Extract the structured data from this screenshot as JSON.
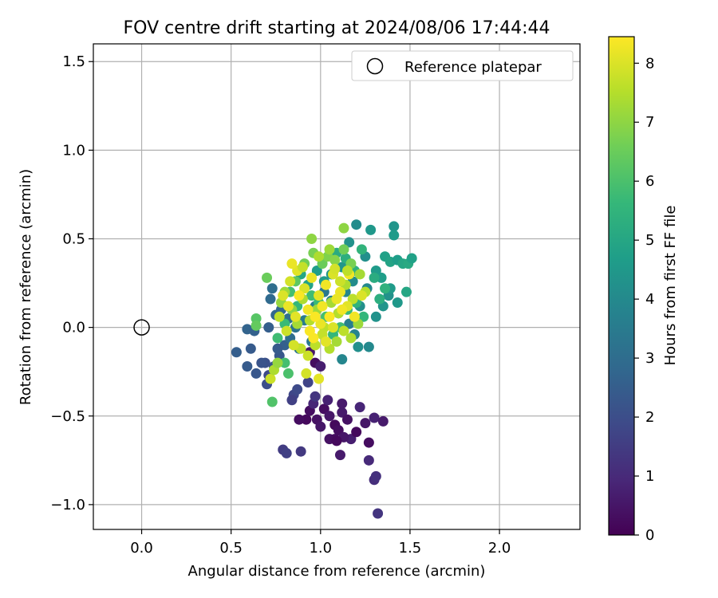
{
  "chart_data": {
    "type": "scatter",
    "title": "FOV centre drift starting at 2024/08/06 17:44:44",
    "xlabel": "Angular distance from reference (arcmin)",
    "ylabel": "Rotation from reference (arcmin)",
    "xlim": [
      -0.27,
      2.45
    ],
    "ylim": [
      -1.14,
      1.6
    ],
    "xticks": [
      0.0,
      0.5,
      1.0,
      1.5,
      2.0
    ],
    "xtick_labels": [
      "0.0",
      "0.5",
      "1.0",
      "1.5",
      "2.0"
    ],
    "yticks": [
      -1.0,
      -0.5,
      0.0,
      0.5,
      1.0,
      1.5
    ],
    "ytick_labels": [
      "−1.0",
      "−0.5",
      "0.0",
      "0.5",
      "1.0",
      "1.5"
    ],
    "grid": true,
    "legend": {
      "position": "upper-right",
      "entries": [
        "Reference platepar"
      ]
    },
    "reference_point": {
      "x": 0.0,
      "y": 0.0,
      "label": "Reference platepar"
    },
    "colorbar": {
      "label": "Hours from first FF file",
      "colormap": "viridis",
      "range": [
        0,
        8.45
      ],
      "ticks": [
        0,
        1,
        2,
        3,
        4,
        5,
        6,
        7,
        8
      ],
      "tick_labels": [
        "0",
        "1",
        "2",
        "3",
        "4",
        "5",
        "6",
        "7",
        "8"
      ]
    },
    "series": [
      {
        "points": [
          [
            0.92,
            -0.52,
            0.2
          ],
          [
            0.94,
            -0.47,
            0.3
          ],
          [
            0.98,
            -0.52,
            0.4
          ],
          [
            1.02,
            -0.46,
            0.3
          ],
          [
            1.05,
            -0.5,
            0.5
          ],
          [
            1.08,
            -0.55,
            0.2
          ],
          [
            1.1,
            -0.58,
            0.3
          ],
          [
            1.12,
            -0.48,
            0.6
          ],
          [
            1.15,
            -0.52,
            0.4
          ],
          [
            1.17,
            -0.63,
            0.7
          ],
          [
            1.2,
            -0.59,
            0.2
          ],
          [
            1.22,
            -0.45,
            0.9
          ],
          [
            1.25,
            -0.54,
            0.5
          ],
          [
            1.27,
            -0.65,
            0.3
          ],
          [
            1.3,
            -0.51,
            0.8
          ],
          [
            1.35,
            -0.53,
            0.6
          ],
          [
            1.05,
            -0.63,
            0.4
          ],
          [
            1.08,
            -0.63,
            0.3
          ],
          [
            1.11,
            -0.72,
            0.6
          ],
          [
            1.13,
            -0.62,
            0.5
          ],
          [
            1.27,
            -0.75,
            1.0
          ],
          [
            1.3,
            -0.86,
            1.1
          ],
          [
            1.31,
            -0.84,
            1.2
          ],
          [
            1.32,
            -1.05,
            1.3
          ],
          [
            1.04,
            -0.41,
            0.8
          ],
          [
            1.12,
            -0.43,
            0.6
          ],
          [
            0.96,
            -0.43,
            0.9
          ],
          [
            0.88,
            -0.52,
            0.3
          ],
          [
            1.0,
            -0.56,
            0.5
          ],
          [
            1.09,
            -0.64,
            0.2
          ],
          [
            0.97,
            -0.2,
            0.3
          ],
          [
            0.94,
            -0.14,
            0.5
          ],
          [
            1.0,
            -0.22,
            0.7
          ],
          [
            0.79,
            -0.69,
            1.5
          ],
          [
            0.81,
            -0.71,
            1.6
          ],
          [
            0.89,
            -0.7,
            1.4
          ],
          [
            0.85,
            -0.38,
            1.8
          ],
          [
            0.84,
            -0.41,
            1.6
          ],
          [
            0.87,
            -0.35,
            1.9
          ],
          [
            0.93,
            -0.31,
            1.7
          ],
          [
            0.97,
            -0.39,
            1.3
          ],
          [
            0.71,
            -0.27,
            1.9
          ],
          [
            0.7,
            -0.32,
            2.0
          ],
          [
            0.74,
            -0.22,
            2.2
          ],
          [
            0.69,
            -0.2,
            2.1
          ],
          [
            0.64,
            -0.26,
            2.3
          ],
          [
            0.59,
            -0.22,
            2.4
          ],
          [
            0.53,
            -0.14,
            2.5
          ],
          [
            0.61,
            -0.12,
            2.4
          ],
          [
            0.67,
            -0.2,
            2.2
          ],
          [
            0.77,
            -0.16,
            2.3
          ],
          [
            0.8,
            -0.1,
            2.6
          ],
          [
            0.76,
            -0.12,
            2.4
          ],
          [
            0.59,
            -0.01,
            2.7
          ],
          [
            0.63,
            -0.02,
            2.6
          ],
          [
            0.71,
            0.0,
            2.5
          ],
          [
            0.75,
            0.07,
            2.8
          ],
          [
            0.72,
            0.16,
            2.9
          ],
          [
            0.73,
            0.22,
            3.0
          ],
          [
            0.78,
            0.1,
            2.8
          ],
          [
            0.82,
            0.05,
            3.1
          ],
          [
            0.86,
            0.0,
            3.2
          ],
          [
            0.83,
            -0.06,
            3.0
          ],
          [
            0.88,
            -0.12,
            3.3
          ],
          [
            0.95,
            -0.08,
            3.4
          ],
          [
            0.91,
            0.04,
            3.5
          ],
          [
            0.97,
            0.12,
            3.6
          ],
          [
            1.02,
            0.2,
            3.4
          ],
          [
            1.06,
            0.15,
            3.7
          ],
          [
            1.1,
            0.08,
            3.8
          ],
          [
            1.14,
            0.2,
            3.9
          ],
          [
            1.18,
            0.26,
            4.1
          ],
          [
            1.22,
            0.12,
            4.2
          ],
          [
            1.26,
            0.22,
            4.0
          ],
          [
            1.2,
            0.58,
            4.1
          ],
          [
            1.16,
            0.48,
            4.3
          ],
          [
            1.12,
            0.34,
            4.4
          ],
          [
            1.25,
            0.4,
            4.2
          ],
          [
            1.28,
            0.55,
            4.5
          ],
          [
            1.31,
            0.32,
            4.6
          ],
          [
            1.34,
            0.28,
            4.7
          ],
          [
            1.38,
            0.18,
            4.3
          ],
          [
            1.41,
            0.57,
            4.4
          ],
          [
            1.41,
            0.52,
            4.6
          ],
          [
            1.36,
            0.4,
            4.8
          ],
          [
            1.39,
            0.37,
            4.9
          ],
          [
            1.43,
            0.38,
            4.7
          ],
          [
            1.46,
            0.36,
            5.0
          ],
          [
            1.49,
            0.36,
            5.1
          ],
          [
            1.51,
            0.39,
            4.8
          ],
          [
            1.48,
            0.2,
            5.0
          ],
          [
            1.43,
            0.14,
            4.5
          ],
          [
            1.39,
            0.22,
            4.6
          ],
          [
            1.35,
            0.12,
            4.4
          ],
          [
            1.31,
            0.06,
            4.3
          ],
          [
            1.27,
            -0.11,
            4.0
          ],
          [
            1.21,
            -0.11,
            4.2
          ],
          [
            1.12,
            -0.18,
            3.9
          ],
          [
            1.16,
            0.02,
            3.6
          ],
          [
            1.19,
            -0.04,
            3.8
          ],
          [
            1.06,
            0.3,
            4.4
          ],
          [
            1.02,
            0.26,
            4.6
          ],
          [
            0.98,
            0.32,
            4.7
          ],
          [
            0.93,
            0.24,
            4.9
          ],
          [
            0.89,
            0.3,
            5.0
          ],
          [
            1.09,
            0.42,
            5.2
          ],
          [
            1.14,
            0.39,
            5.3
          ],
          [
            1.19,
            0.32,
            5.4
          ],
          [
            1.23,
            0.44,
            5.5
          ],
          [
            1.3,
            0.28,
            5.2
          ],
          [
            1.33,
            0.16,
            5.3
          ],
          [
            1.36,
            0.22,
            5.4
          ],
          [
            1.24,
            0.06,
            5.6
          ],
          [
            1.2,
            0.14,
            5.5
          ],
          [
            1.15,
            0.1,
            5.7
          ],
          [
            1.11,
            0.0,
            5.8
          ],
          [
            1.07,
            -0.04,
            5.6
          ],
          [
            1.03,
            0.06,
            5.9
          ],
          [
            0.99,
            0.14,
            5.7
          ],
          [
            0.95,
            0.18,
            5.8
          ],
          [
            0.87,
            0.12,
            5.6
          ],
          [
            0.83,
            0.2,
            5.9
          ],
          [
            0.8,
            0.02,
            5.7
          ],
          [
            0.76,
            -0.06,
            5.8
          ],
          [
            0.8,
            -0.2,
            5.9
          ],
          [
            0.82,
            -0.26,
            6.0
          ],
          [
            0.73,
            -0.42,
            6.1
          ],
          [
            0.64,
            0.05,
            6.2
          ],
          [
            0.64,
            0.01,
            6.4
          ],
          [
            0.7,
            0.28,
            6.5
          ],
          [
            0.86,
            0.26,
            6.3
          ],
          [
            0.91,
            0.36,
            6.6
          ],
          [
            0.96,
            0.42,
            6.7
          ],
          [
            1.01,
            0.36,
            6.5
          ],
          [
            1.04,
            0.4,
            6.8
          ],
          [
            1.08,
            0.38,
            6.9
          ],
          [
            1.13,
            0.44,
            6.6
          ],
          [
            1.17,
            0.36,
            6.7
          ],
          [
            1.13,
            0.56,
            7.0
          ],
          [
            0.95,
            0.5,
            7.0
          ],
          [
            0.78,
            0.14,
            7.1
          ],
          [
            0.8,
            0.2,
            7.2
          ],
          [
            0.84,
            0.1,
            7.0
          ],
          [
            0.87,
            0.02,
            7.3
          ],
          [
            0.9,
            0.16,
            7.4
          ],
          [
            0.94,
            0.04,
            7.5
          ],
          [
            0.98,
            0.1,
            7.2
          ],
          [
            1.02,
            0.0,
            7.6
          ],
          [
            1.06,
            0.14,
            7.3
          ],
          [
            1.1,
            0.08,
            7.5
          ],
          [
            1.14,
            0.24,
            7.4
          ],
          [
            1.18,
            0.16,
            7.6
          ],
          [
            1.22,
            0.3,
            7.3
          ],
          [
            1.25,
            0.2,
            7.5
          ],
          [
            1.21,
            0.02,
            7.2
          ],
          [
            1.17,
            -0.06,
            7.4
          ],
          [
            1.13,
            -0.02,
            7.6
          ],
          [
            1.09,
            -0.08,
            7.3
          ],
          [
            1.05,
            -0.12,
            7.5
          ],
          [
            1.01,
            -0.04,
            7.7
          ],
          [
            0.97,
            -0.1,
            7.6
          ],
          [
            0.93,
            -0.16,
            7.8
          ],
          [
            0.89,
            -0.12,
            7.7
          ],
          [
            0.85,
            -0.1,
            7.9
          ],
          [
            0.81,
            -0.02,
            7.8
          ],
          [
            0.77,
            0.06,
            7.6
          ],
          [
            0.79,
            0.18,
            8.0
          ],
          [
            0.83,
            0.26,
            7.9
          ],
          [
            0.87,
            0.32,
            8.1
          ],
          [
            0.91,
            0.22,
            8.0
          ],
          [
            0.95,
            0.28,
            8.2
          ],
          [
            0.99,
            0.18,
            8.1
          ],
          [
            1.03,
            0.24,
            8.3
          ],
          [
            1.07,
            0.3,
            8.0
          ],
          [
            1.11,
            0.2,
            8.2
          ],
          [
            1.15,
            0.12,
            8.1
          ],
          [
            1.19,
            0.06,
            8.3
          ],
          [
            1.23,
            0.18,
            8.0
          ],
          [
            1.0,
            0.02,
            8.2
          ],
          [
            0.96,
            -0.06,
            8.4
          ],
          [
            0.92,
            -0.26,
            7.9
          ],
          [
            0.99,
            -0.29,
            8.1
          ],
          [
            0.72,
            -0.29,
            7.8
          ],
          [
            0.74,
            -0.24,
            7.4
          ],
          [
            0.76,
            -0.2,
            7.1
          ],
          [
            0.84,
            0.36,
            8.2
          ],
          [
            0.9,
            0.34,
            7.7
          ],
          [
            1.05,
            0.44,
            7.2
          ],
          [
            1.08,
            0.33,
            7.9
          ],
          [
            1.16,
            0.3,
            8.3
          ],
          [
            0.88,
            0.18,
            8.4
          ],
          [
            0.93,
            0.1,
            8.3
          ],
          [
            0.97,
            0.06,
            8.4
          ],
          [
            1.01,
            0.12,
            8.3
          ],
          [
            1.05,
            0.06,
            8.4
          ],
          [
            1.09,
            0.16,
            8.2
          ],
          [
            1.12,
            0.1,
            8.3
          ],
          [
            0.86,
            0.06,
            8.1
          ],
          [
            0.82,
            0.12,
            8.2
          ],
          [
            0.94,
            -0.02,
            8.4
          ],
          [
            1.03,
            -0.08,
            8.1
          ],
          [
            1.07,
            0.0,
            8.0
          ],
          [
            1.11,
            0.26,
            7.8
          ],
          [
            1.15,
            0.32,
            7.6
          ],
          [
            0.99,
            0.4,
            7.4
          ]
        ]
      }
    ]
  }
}
